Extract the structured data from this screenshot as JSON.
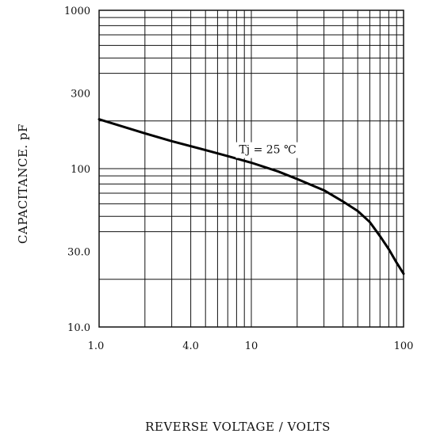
{
  "chart_data": {
    "type": "line",
    "title": "",
    "xlabel": "REVERSE  VOLTAGE / VOLTS",
    "ylabel": "CAPACITANCE.  pF",
    "xscale": "log",
    "yscale": "log",
    "xlim": [
      1.0,
      100
    ],
    "ylim": [
      10.0,
      1000
    ],
    "grid": true,
    "x_ticks": [
      {
        "value": 1.0,
        "label": "1.0"
      },
      {
        "value": 4.0,
        "label": "4.0"
      },
      {
        "value": 10,
        "label": "10"
      },
      {
        "value": 100,
        "label": "100"
      }
    ],
    "y_ticks": [
      {
        "value": 1000,
        "label": "1000"
      },
      {
        "value": 300,
        "label": "300"
      },
      {
        "value": 100,
        "label": "100"
      },
      {
        "value": 30.0,
        "label": "30.0"
      },
      {
        "value": 10.0,
        "label": "10.0"
      }
    ],
    "x_gridlines": [
      1.0,
      2.0,
      3.0,
      4.0,
      5.0,
      6.0,
      7.0,
      8.0,
      9.0,
      10,
      20,
      30,
      40,
      50,
      60,
      70,
      80,
      90,
      100
    ],
    "y_gridlines": [
      10,
      20,
      40,
      50,
      60,
      70,
      80,
      90,
      100,
      200,
      400,
      500,
      600,
      700,
      800,
      900,
      1000
    ],
    "series": [
      {
        "x": [
          1.0,
          2.0,
          3.0,
          5.0,
          7.0,
          10,
          15,
          20,
          30,
          40,
          50,
          60,
          70,
          80,
          90,
          100
        ],
        "y": [
          205,
          167,
          149,
          131,
          120,
          109,
          96,
          86,
          73,
          62,
          54,
          46,
          37.5,
          31,
          25.5,
          21.7
        ],
        "color": "#000000"
      }
    ],
    "annotations": [
      {
        "text": "Tj = 25 ℃",
        "x": 8.3,
        "y": 125
      }
    ]
  }
}
